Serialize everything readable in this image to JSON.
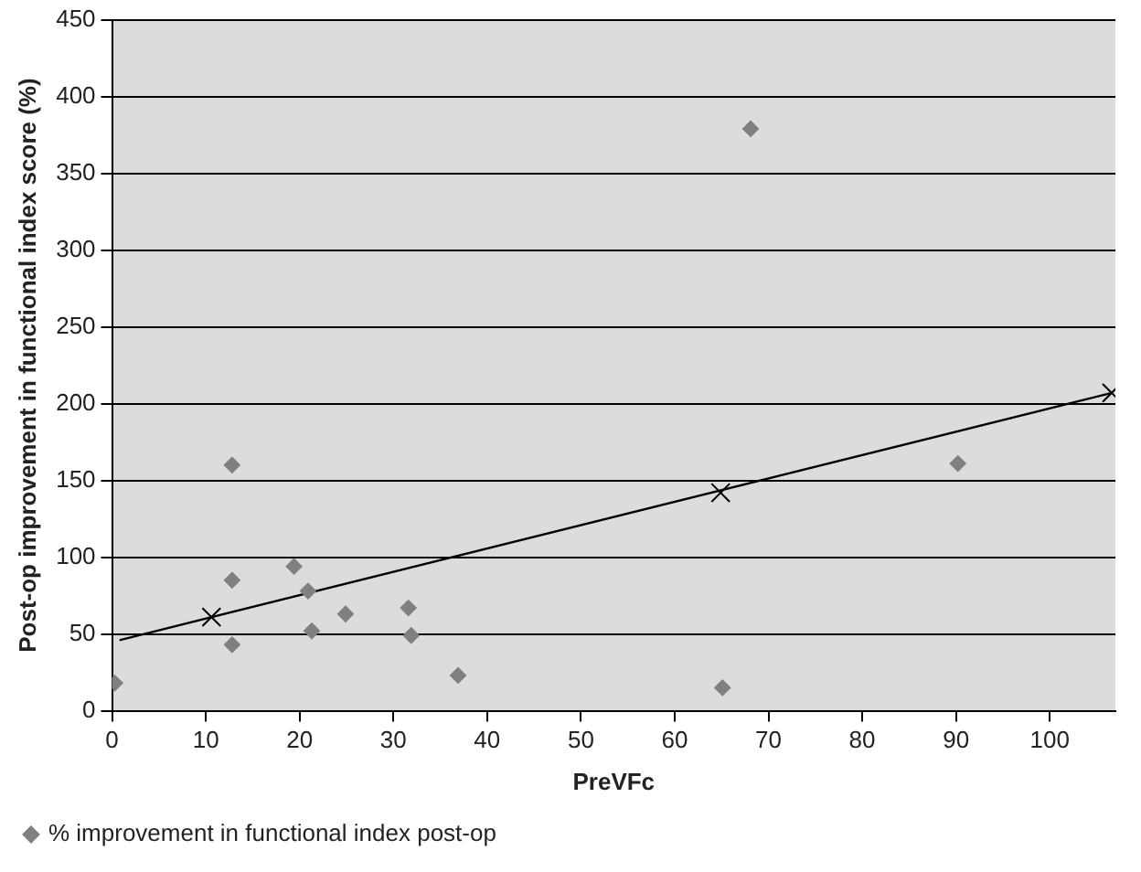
{
  "chart_data": {
    "type": "scatter",
    "xlabel": "PreVFc",
    "ylabel": "Post-op improvement in functional index score (%)",
    "xlim": [
      0,
      107
    ],
    "xticks": [
      0,
      10,
      20,
      30,
      40,
      50,
      60,
      70,
      80,
      90,
      100
    ],
    "ylim": [
      0,
      450
    ],
    "yticks": [
      0,
      50,
      100,
      150,
      200,
      250,
      300,
      350,
      400,
      450
    ],
    "grid": "y",
    "legend": "bottom left",
    "series": [
      {
        "name": "% improvement in functional index post-op",
        "type": "scatter",
        "marker": "diamond",
        "color": "#808080",
        "x": [
          0.3,
          12.8,
          12.8,
          12.8,
          19.4,
          20.9,
          21.3,
          24.9,
          31.6,
          31.9,
          36.9,
          68.1,
          65.1,
          90.2
        ],
        "values": [
          18,
          160,
          85,
          43,
          94,
          78,
          52,
          63,
          67,
          49,
          23,
          379,
          15,
          161
        ]
      },
      {
        "type": "line",
        "marker": "none",
        "color": "#000000",
        "x": [
          0.8,
          106.6
        ],
        "values": [
          46,
          207
        ]
      },
      {
        "type": "scatter",
        "marker": "cross",
        "color": "#000000",
        "x": [
          10.6,
          64.9,
          106.6
        ],
        "values": [
          61,
          142,
          207
        ]
      }
    ]
  }
}
